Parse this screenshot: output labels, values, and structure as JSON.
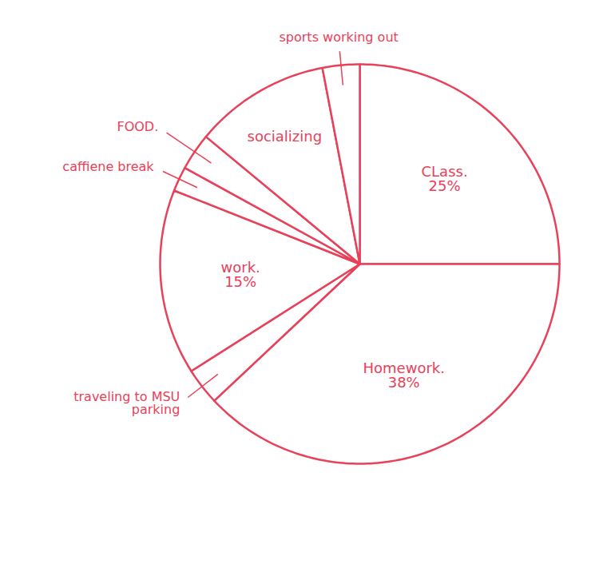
{
  "chart_data": {
    "type": "pie",
    "categories": [
      "CLass.",
      "Homework.",
      "traveling to MSU parking",
      "work.",
      "caffiene break",
      "FOOD.",
      "socializing",
      "sports working out"
    ],
    "values": [
      25,
      38,
      3,
      15,
      2,
      3,
      11,
      3
    ],
    "value_labels": [
      "25%",
      "38%",
      null,
      "15%",
      null,
      null,
      null,
      null
    ],
    "data_labels": true,
    "color": "#e8415a",
    "tick_labels": false
  }
}
